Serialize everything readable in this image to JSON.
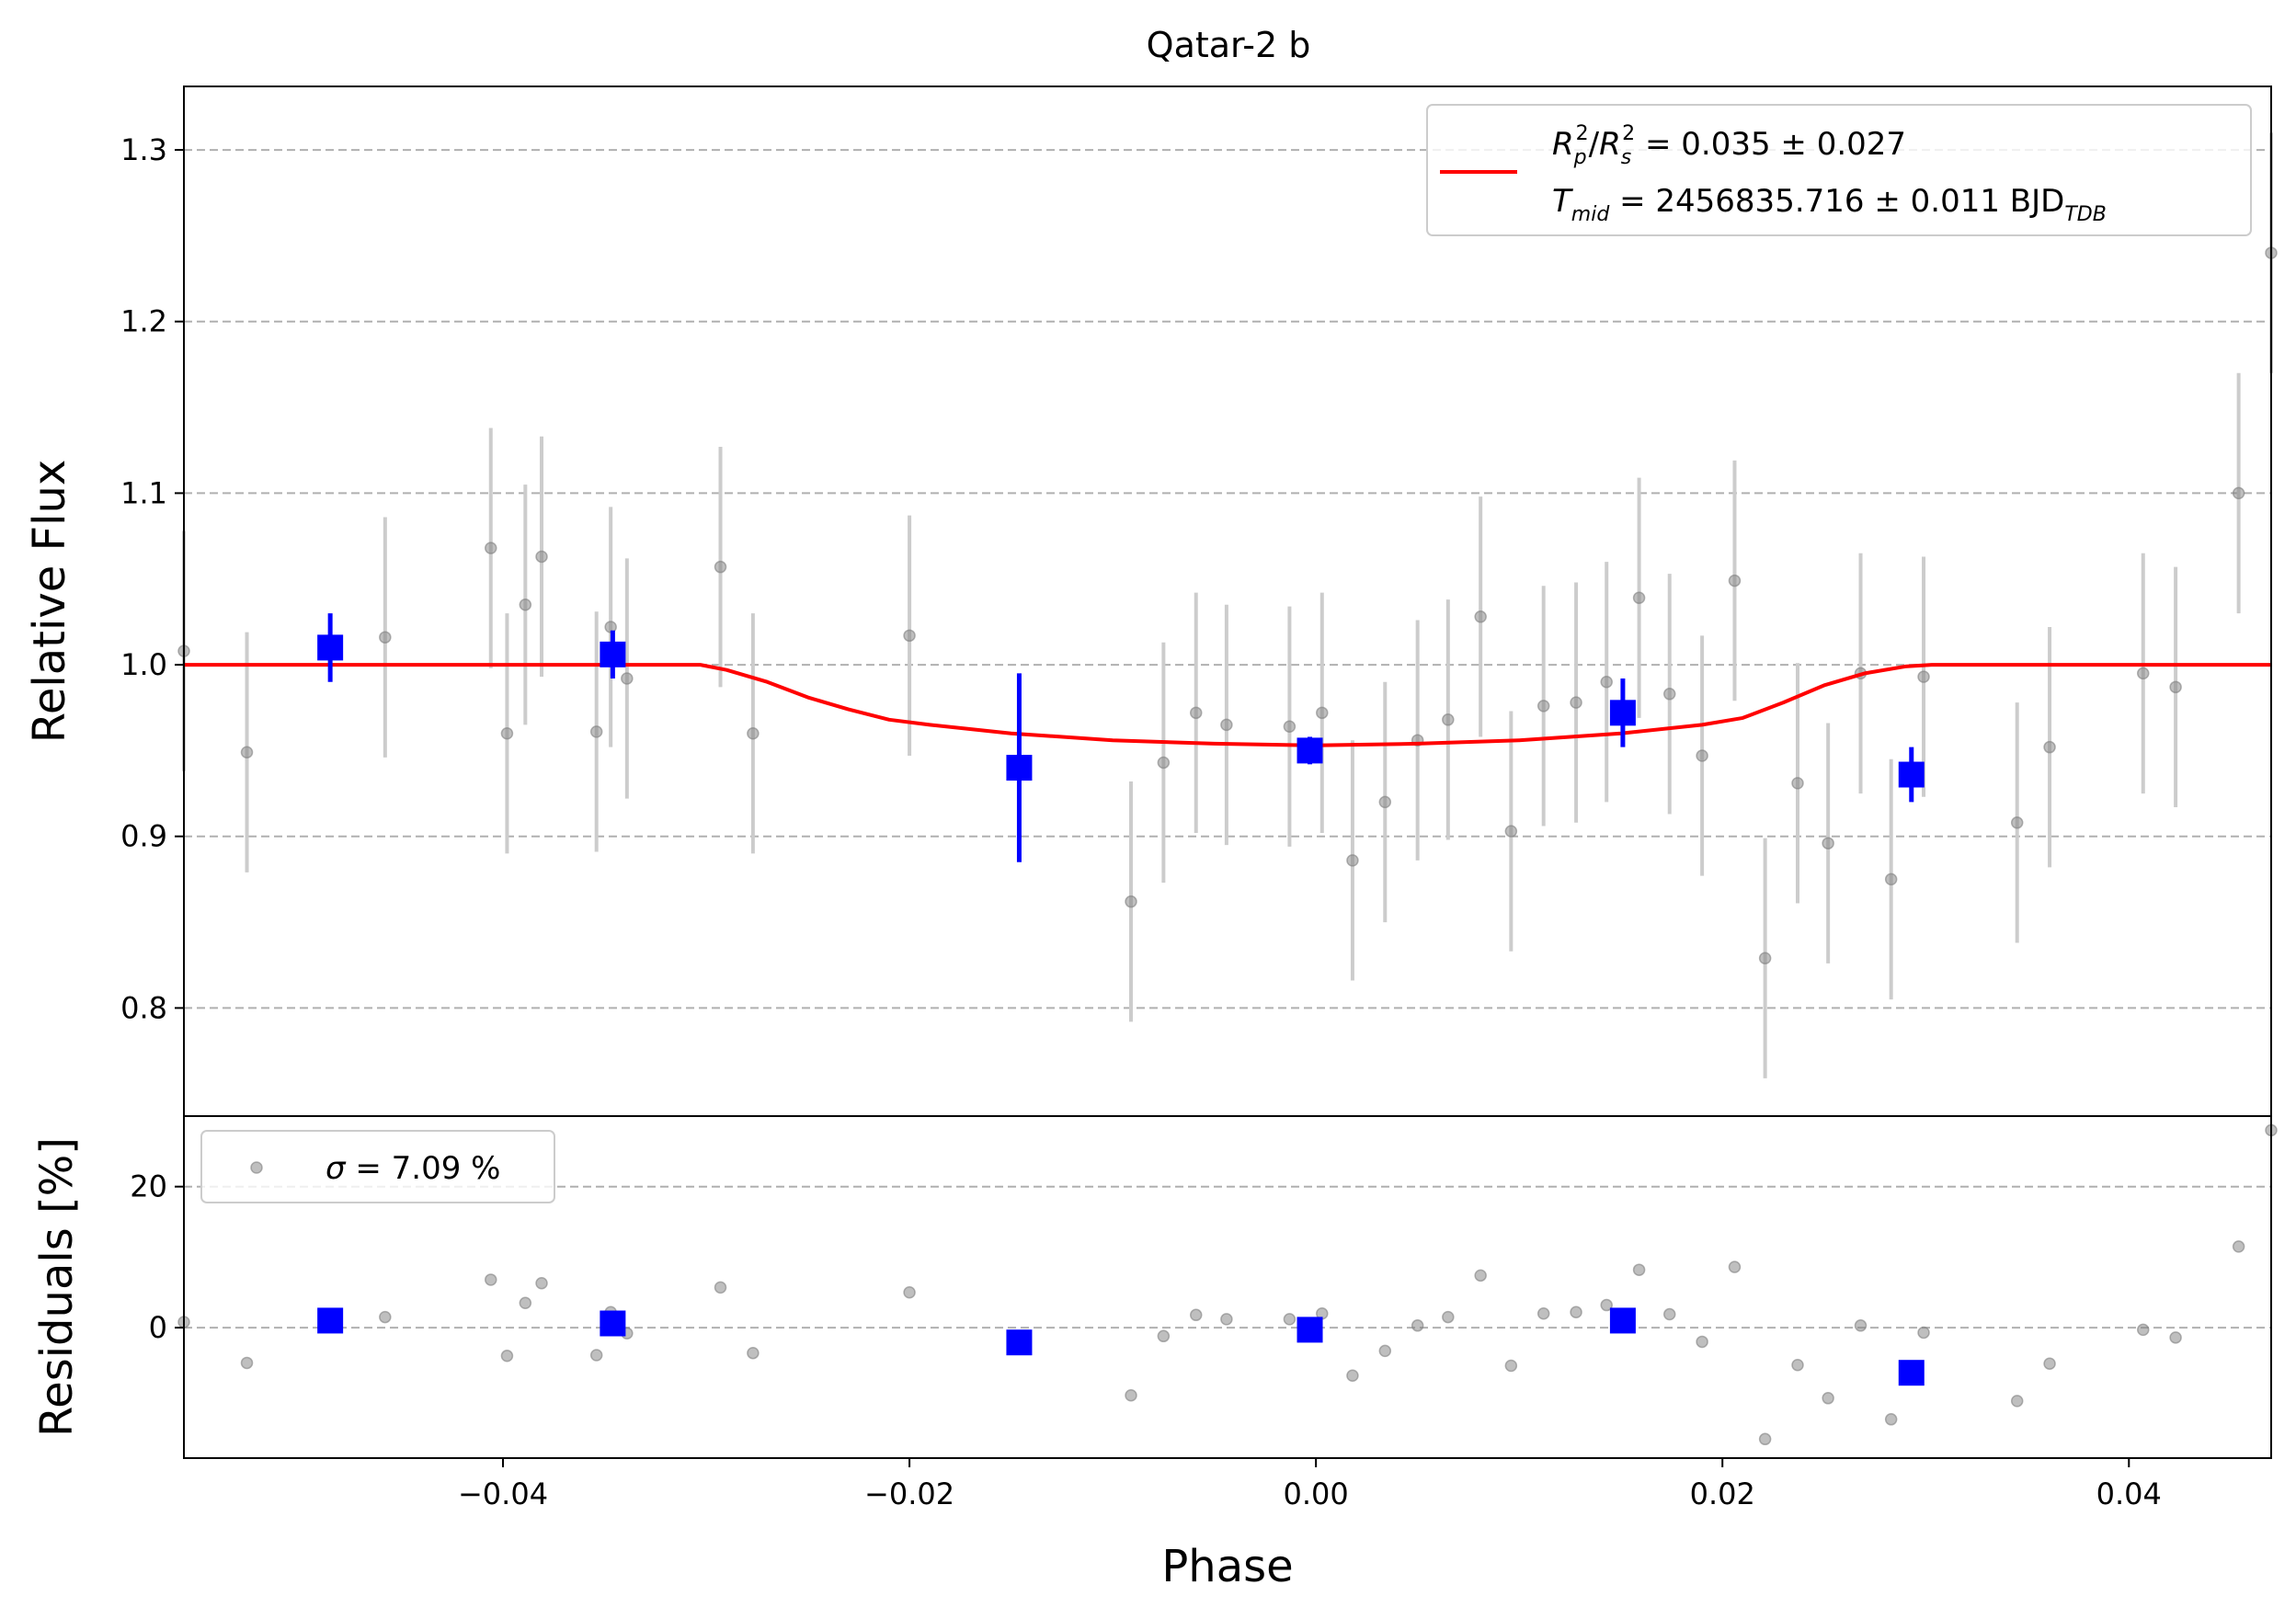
{
  "chart_data": [
    {
      "panel": "flux",
      "type": "scatter",
      "title": "Qatar-2 b",
      "xlabel": "",
      "ylabel": "Relative Flux",
      "xlim": [
        -0.0557,
        0.047
      ],
      "ylim": [
        0.737,
        1.337
      ],
      "yticks": [
        0.8,
        0.9,
        1.0,
        1.1,
        1.2,
        1.3
      ],
      "ytick_labels": [
        "0.8",
        "0.9",
        "1.0",
        "1.1",
        "1.2",
        "1.3"
      ],
      "grid": "horizontal dashed",
      "legend_position": "top-right",
      "legend": {
        "line1": {
          "r": "R",
          "p": "p",
          "two": "2",
          "slash": "/",
          "s": "s",
          "value": " = 0.035 ± 0.027"
        },
        "line2": {
          "t": "T",
          "mid": "mid",
          "value": " = 2456835.716 ± 0.011 BJD",
          "tdb": "TDB"
        }
      },
      "colors": {
        "data": "#808080",
        "error": "#cccccc",
        "binned": "#0000ff",
        "model": "#ff0000"
      },
      "series": [
        {
          "kind": "data",
          "x": [
            -0.0557,
            -0.0526,
            -0.0458,
            -0.0406,
            -0.0398,
            -0.0389,
            -0.0381,
            -0.0354,
            -0.0347,
            -0.0339,
            -0.0293,
            -0.0277,
            -0.02,
            -0.0091,
            -0.0075,
            -0.0059,
            -0.0044,
            -0.0013,
            0.0003,
            0.0018,
            0.0034,
            0.005,
            0.0065,
            0.0081,
            0.0096,
            0.0112,
            0.0128,
            0.0143,
            0.0159,
            0.0174,
            0.019,
            0.0206,
            0.0221,
            0.0237,
            0.0252,
            0.0268,
            0.0283,
            0.0299,
            0.0345,
            0.0361,
            0.0407,
            0.0423,
            0.0454,
            0.047
          ],
          "y": [
            1.008,
            0.949,
            1.016,
            1.068,
            0.96,
            1.035,
            1.063,
            0.961,
            1.022,
            0.992,
            1.057,
            0.96,
            1.017,
            0.862,
            0.943,
            0.972,
            0.965,
            0.964,
            0.972,
            0.886,
            0.92,
            0.956,
            0.968,
            1.028,
            0.903,
            0.976,
            0.978,
            0.99,
            1.039,
            0.983,
            0.947,
            1.049,
            0.829,
            0.931,
            0.896,
            0.995,
            0.875,
            0.993,
            0.908,
            0.952,
            0.995,
            0.987,
            1.1,
            1.24
          ],
          "err": [
            0.07,
            0.07,
            0.07,
            0.07,
            0.07,
            0.07,
            0.07,
            0.07,
            0.07,
            0.07,
            0.07,
            0.07,
            0.07,
            0.07,
            0.07,
            0.07,
            0.07,
            0.07,
            0.07,
            0.07,
            0.07,
            0.07,
            0.07,
            0.07,
            0.07,
            0.07,
            0.07,
            0.07,
            0.07,
            0.07,
            0.07,
            0.07,
            0.07,
            0.07,
            0.07,
            0.07,
            0.07,
            0.07,
            0.07,
            0.07,
            0.07,
            0.07,
            0.07,
            0.07
          ]
        },
        {
          "kind": "binned",
          "x": [
            -0.0485,
            -0.0346,
            -0.0146,
            -0.0003,
            0.0151,
            0.0293
          ],
          "y": [
            1.01,
            1.006,
            0.94,
            0.95,
            0.972,
            0.936
          ],
          "err": [
            0.02,
            0.014,
            0.055,
            0.008,
            0.02,
            0.016
          ]
        },
        {
          "kind": "model",
          "x": [
            -0.0557,
            -0.0303,
            -0.029,
            -0.027,
            -0.025,
            -0.023,
            -0.021,
            -0.019,
            -0.015,
            -0.01,
            -0.005,
            0.0,
            0.005,
            0.01,
            0.015,
            0.019,
            0.021,
            0.023,
            0.025,
            0.027,
            0.029,
            0.0303,
            0.047
          ],
          "y": [
            1.0,
            1.0,
            0.997,
            0.99,
            0.981,
            0.974,
            0.968,
            0.965,
            0.96,
            0.956,
            0.954,
            0.953,
            0.954,
            0.956,
            0.96,
            0.965,
            0.969,
            0.978,
            0.988,
            0.995,
            0.999,
            1.0,
            1.0
          ]
        }
      ]
    },
    {
      "panel": "residuals",
      "type": "scatter",
      "title": "",
      "xlabel": "Phase",
      "ylabel": "Residuals [%]",
      "xlim": [
        -0.0557,
        0.047
      ],
      "ylim": [
        -18.5,
        30.0
      ],
      "xticks": [
        -0.04,
        -0.02,
        0.0,
        0.02,
        0.04
      ],
      "xtick_labels": [
        "−0.04",
        "−0.02",
        "0.00",
        "0.02",
        "0.04"
      ],
      "yticks": [
        0,
        20
      ],
      "ytick_labels": [
        "0",
        "20"
      ],
      "grid": "horizontal dashed",
      "legend_position": "top-left",
      "legend": {
        "sigma": "σ",
        "value": " = 7.09 %"
      },
      "series": [
        {
          "kind": "data",
          "x": [
            -0.0557,
            -0.0526,
            -0.0458,
            -0.0406,
            -0.0398,
            -0.0389,
            -0.0381,
            -0.0354,
            -0.0347,
            -0.0339,
            -0.0293,
            -0.0277,
            -0.02,
            -0.0091,
            -0.0075,
            -0.0059,
            -0.0044,
            -0.0013,
            0.0003,
            0.0018,
            0.0034,
            0.005,
            0.0065,
            0.0081,
            0.0096,
            0.0112,
            0.0128,
            0.0143,
            0.0159,
            0.0174,
            0.019,
            0.0206,
            0.0221,
            0.0237,
            0.0252,
            0.0268,
            0.0283,
            0.0299,
            0.0345,
            0.0361,
            0.0407,
            0.0423,
            0.0454,
            0.047
          ],
          "y": [
            0.8,
            -5.0,
            1.5,
            6.8,
            -4.0,
            3.5,
            6.3,
            -3.9,
            2.2,
            -0.8,
            5.7,
            -3.6,
            5.0,
            -9.6,
            -1.2,
            1.8,
            1.2,
            1.2,
            2.0,
            -6.8,
            -3.3,
            0.3,
            1.5,
            7.4,
            -5.4,
            2.0,
            2.2,
            3.2,
            8.2,
            1.9,
            -2.0,
            8.6,
            -15.8,
            -5.3,
            -10.0,
            0.3,
            -13.0,
            -0.7,
            -10.4,
            -5.1,
            -0.3,
            -1.4,
            11.5,
            28.0
          ]
        },
        {
          "kind": "binned",
          "x": [
            -0.0485,
            -0.0346,
            -0.0146,
            -0.0003,
            0.0151,
            0.0293
          ],
          "y": [
            1.0,
            0.6,
            -2.1,
            -0.3,
            1.0,
            -6.4
          ]
        }
      ]
    }
  ]
}
